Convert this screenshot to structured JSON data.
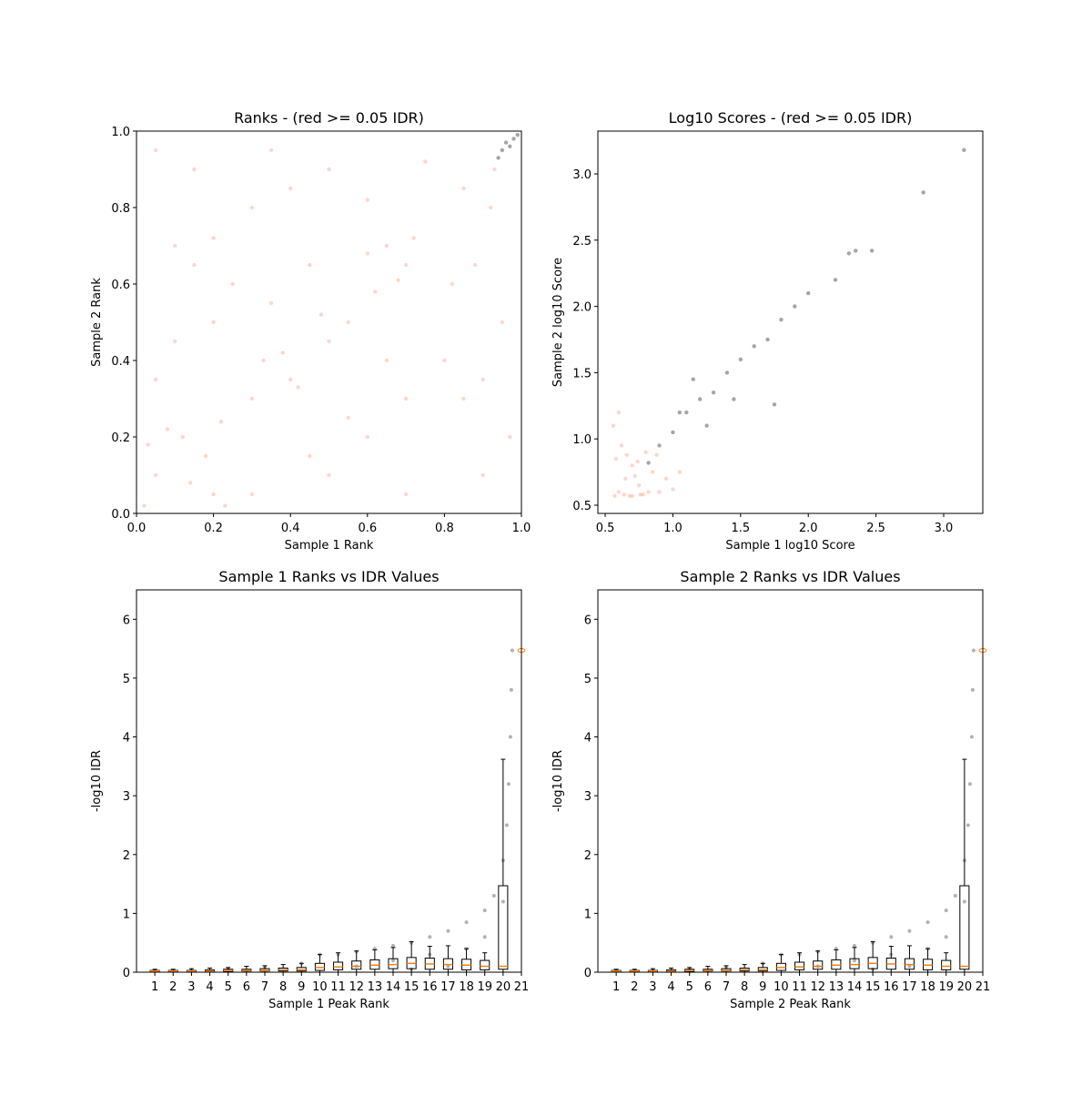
{
  "chart_data": [
    {
      "type": "scatter",
      "title": "Ranks - (red >= 0.05 IDR)",
      "x_label": "Sample 1 Rank",
      "y_label": "Sample 2 Rank",
      "xlim": [
        0,
        1
      ],
      "ylim": [
        0,
        1
      ],
      "xticks": [
        {
          "value": 0,
          "label": "0.0"
        },
        0.2,
        0.4,
        0.6,
        0.8,
        {
          "value": 1,
          "label": "1.0"
        }
      ],
      "yticks": [
        {
          "value": 0,
          "label": "0.0"
        },
        0.2,
        0.4,
        0.6,
        0.8,
        {
          "value": 1,
          "label": "1.0"
        }
      ],
      "series": [
        {
          "color": "#fa8c6c",
          "x": [
            0.05,
            0.12,
            0.2,
            0.08,
            0.18,
            0.3,
            0.4,
            0.5,
            0.35,
            0.45,
            0.55,
            0.3,
            0.4,
            0.5,
            0.6,
            0.65,
            0.7,
            0.72,
            0.6,
            0.1,
            0.15,
            0.2,
            0.05,
            0.15,
            0.8,
            0.85,
            0.9,
            0.82,
            0.88,
            0.95,
            0.97,
            0.5,
            0.6,
            0.7,
            0.9,
            0.1,
            0.2,
            0.05,
            0.65,
            0.7,
            0.3,
            0.35,
            0.75,
            0.85,
            0.25,
            0.55,
            0.45,
            0.92,
            0.02,
            0.23,
            0.33,
            0.42,
            0.62,
            0.68,
            0.14,
            0.03,
            0.22,
            0.38,
            0.48,
            0.93
          ],
          "y": [
            0.1,
            0.2,
            0.05,
            0.22,
            0.15,
            0.3,
            0.35,
            0.45,
            0.55,
            0.65,
            0.5,
            0.8,
            0.85,
            0.9,
            0.82,
            0.7,
            0.65,
            0.72,
            0.68,
            0.7,
            0.65,
            0.72,
            0.95,
            0.9,
            0.4,
            0.3,
            0.35,
            0.6,
            0.65,
            0.5,
            0.2,
            0.1,
            0.2,
            0.05,
            0.1,
            0.45,
            0.5,
            0.35,
            0.4,
            0.3,
            0.05,
            0.95,
            0.92,
            0.85,
            0.6,
            0.25,
            0.15,
            0.8,
            0.02,
            0.02,
            0.4,
            0.33,
            0.58,
            0.61,
            0.08,
            0.18,
            0.24,
            0.42,
            0.52,
            0.9
          ]
        },
        {
          "color": "#000000",
          "x": [
            0.94,
            0.95,
            0.96,
            0.97,
            0.98,
            0.99
          ],
          "y": [
            0.93,
            0.95,
            0.97,
            0.96,
            0.98,
            0.99
          ]
        }
      ]
    },
    {
      "type": "scatter",
      "title": "Log10 Scores - (red >= 0.05 IDR)",
      "x_label": "Sample 1 log10 Score",
      "y_label": "Sample 2 log10 Score",
      "xlim": [
        0.446,
        3.289
      ],
      "ylim": [
        0.438,
        3.323
      ],
      "xticks": [
        0.5,
        {
          "value": 1,
          "label": "1.0"
        },
        1.5,
        {
          "value": 2,
          "label": "2.0"
        },
        2.5,
        {
          "value": 3,
          "label": "3.0"
        }
      ],
      "yticks": [
        0.5,
        {
          "value": 1,
          "label": "1.0"
        },
        1.5,
        {
          "value": 2,
          "label": "2.0"
        },
        2.5,
        {
          "value": 3,
          "label": "3.0"
        }
      ],
      "series": [
        {
          "color": "#fa8c6c",
          "x": [
            0.6,
            0.65,
            0.7,
            0.75,
            0.8,
            0.58,
            0.9,
            0.95,
            0.85,
            0.62,
            0.68,
            0.78,
            1.0,
            1.05,
            0.56,
            0.6,
            0.72,
            0.88,
            0.57,
            0.64,
            0.7,
            0.76,
            0.82,
            0.66,
            0.74
          ],
          "y": [
            0.6,
            0.7,
            0.8,
            0.65,
            0.9,
            0.85,
            0.6,
            0.7,
            0.75,
            0.95,
            0.57,
            0.58,
            0.62,
            0.75,
            1.1,
            1.2,
            0.72,
            0.88,
            0.57,
            0.58,
            0.57,
            0.58,
            0.6,
            0.88,
            0.83
          ]
        },
        {
          "color": "#000000",
          "x": [
            0.82,
            0.9,
            1.0,
            1.1,
            1.2,
            1.3,
            1.4,
            1.5,
            1.6,
            1.7,
            1.8,
            1.9,
            2.0,
            2.2,
            2.3,
            2.35,
            2.47,
            2.85,
            3.15,
            1.25,
            1.45,
            1.75,
            1.05,
            1.15
          ],
          "y": [
            0.82,
            0.95,
            1.05,
            1.2,
            1.3,
            1.35,
            1.5,
            1.6,
            1.7,
            1.75,
            1.9,
            2.0,
            2.1,
            2.2,
            2.4,
            2.42,
            2.42,
            2.86,
            3.18,
            1.1,
            1.3,
            1.26,
            1.2,
            1.45
          ]
        }
      ]
    },
    {
      "type": "box",
      "title": "Sample 1 Ranks vs IDR Values",
      "x_label": "Sample 1 Peak Rank",
      "y_label": "-log10 IDR",
      "xlim": [
        0,
        21
      ],
      "ylim": [
        0,
        6.5
      ],
      "xticks": [
        1,
        2,
        3,
        4,
        5,
        6,
        7,
        8,
        9,
        10,
        11,
        12,
        13,
        14,
        15,
        16,
        17,
        18,
        19,
        20,
        21
      ],
      "yticks": [
        0,
        1,
        2,
        3,
        4,
        5,
        6
      ],
      "points": {
        "color": "#000000",
        "x": [
          1,
          3,
          5,
          7,
          9,
          10,
          11,
          12,
          13,
          14,
          15,
          16,
          17,
          18,
          19,
          19.5,
          20,
          20.2,
          20.3,
          20.4,
          20.45,
          20.5,
          12,
          14,
          16,
          18,
          19,
          20,
          17,
          15
        ],
        "y": [
          0.02,
          0.03,
          0.05,
          0.08,
          0.15,
          0.3,
          0.3,
          0.35,
          0.4,
          0.45,
          0.5,
          0.6,
          0.7,
          0.85,
          1.05,
          1.3,
          1.9,
          2.5,
          3.2,
          4.0,
          4.8,
          5.47,
          0.1,
          0.2,
          0.3,
          0.4,
          0.6,
          1.2,
          0.1,
          0.05
        ]
      },
      "boxes": {
        "positions": [
          1,
          2,
          3,
          4,
          5,
          6,
          7,
          8,
          9,
          10,
          11,
          12,
          13,
          14,
          15,
          16,
          17,
          18,
          19,
          20
        ],
        "low": [
          0,
          0,
          0,
          0,
          0,
          0,
          0,
          0,
          0,
          0,
          0,
          0,
          0,
          0,
          0,
          0,
          0,
          0,
          0,
          0
        ],
        "q1": [
          0.01,
          0.01,
          0.01,
          0.01,
          0.01,
          0.02,
          0.02,
          0.02,
          0.02,
          0.03,
          0.04,
          0.05,
          0.05,
          0.06,
          0.06,
          0.05,
          0.05,
          0.04,
          0.04,
          0.05
        ],
        "median": [
          0.02,
          0.02,
          0.02,
          0.02,
          0.03,
          0.03,
          0.03,
          0.04,
          0.04,
          0.08,
          0.09,
          0.1,
          0.12,
          0.13,
          0.15,
          0.14,
          0.13,
          0.12,
          0.1,
          0.1
        ],
        "q3": [
          0.03,
          0.03,
          0.03,
          0.04,
          0.05,
          0.05,
          0.06,
          0.07,
          0.08,
          0.15,
          0.17,
          0.19,
          0.21,
          0.23,
          0.25,
          0.24,
          0.23,
          0.22,
          0.2,
          1.47
        ],
        "high": [
          0.05,
          0.05,
          0.06,
          0.07,
          0.08,
          0.1,
          0.11,
          0.13,
          0.15,
          0.3,
          0.33,
          0.36,
          0.38,
          0.42,
          0.52,
          0.44,
          0.45,
          0.4,
          0.33,
          3.62
        ],
        "median_color": "#ff7f0e"
      },
      "fliers": {
        "x": [
          21
        ],
        "y": [
          5.47
        ],
        "color": "#ff7f0e"
      }
    },
    {
      "type": "box",
      "title": "Sample 2 Ranks vs IDR Values",
      "x_label": "Sample 2 Peak Rank",
      "y_label": "-log10 IDR",
      "xlim": [
        0,
        21
      ],
      "ylim": [
        0,
        6.5
      ],
      "xticks": [
        1,
        2,
        3,
        4,
        5,
        6,
        7,
        8,
        9,
        10,
        11,
        12,
        13,
        14,
        15,
        16,
        17,
        18,
        19,
        20,
        21
      ],
      "yticks": [
        0,
        1,
        2,
        3,
        4,
        5,
        6
      ],
      "points": {
        "color": "#000000",
        "x": [
          1,
          3,
          5,
          7,
          9,
          10,
          11,
          12,
          13,
          14,
          15,
          16,
          17,
          18,
          19,
          19.5,
          20,
          20.2,
          20.3,
          20.4,
          20.45,
          20.5,
          12,
          14,
          16,
          18,
          19,
          20,
          17,
          15
        ],
        "y": [
          0.02,
          0.03,
          0.05,
          0.08,
          0.15,
          0.3,
          0.3,
          0.35,
          0.4,
          0.45,
          0.5,
          0.6,
          0.7,
          0.85,
          1.05,
          1.3,
          1.9,
          2.5,
          3.2,
          4.0,
          4.8,
          5.47,
          0.1,
          0.2,
          0.3,
          0.4,
          0.6,
          1.2,
          0.1,
          0.05
        ]
      },
      "boxes": {
        "positions": [
          1,
          2,
          3,
          4,
          5,
          6,
          7,
          8,
          9,
          10,
          11,
          12,
          13,
          14,
          15,
          16,
          17,
          18,
          19,
          20
        ],
        "low": [
          0,
          0,
          0,
          0,
          0,
          0,
          0,
          0,
          0,
          0,
          0,
          0,
          0,
          0,
          0,
          0,
          0,
          0,
          0,
          0
        ],
        "q1": [
          0.01,
          0.01,
          0.01,
          0.01,
          0.01,
          0.02,
          0.02,
          0.02,
          0.02,
          0.03,
          0.04,
          0.05,
          0.05,
          0.06,
          0.06,
          0.05,
          0.05,
          0.04,
          0.04,
          0.05
        ],
        "median": [
          0.02,
          0.02,
          0.02,
          0.02,
          0.03,
          0.03,
          0.03,
          0.04,
          0.04,
          0.08,
          0.09,
          0.1,
          0.12,
          0.13,
          0.15,
          0.14,
          0.13,
          0.12,
          0.1,
          0.1
        ],
        "q3": [
          0.03,
          0.03,
          0.03,
          0.04,
          0.05,
          0.05,
          0.06,
          0.07,
          0.08,
          0.15,
          0.17,
          0.19,
          0.21,
          0.23,
          0.25,
          0.24,
          0.23,
          0.22,
          0.2,
          1.47
        ],
        "high": [
          0.05,
          0.05,
          0.06,
          0.07,
          0.08,
          0.1,
          0.11,
          0.13,
          0.15,
          0.3,
          0.33,
          0.36,
          0.38,
          0.42,
          0.52,
          0.44,
          0.45,
          0.4,
          0.33,
          3.62
        ],
        "median_color": "#ff7f0e"
      },
      "fliers": {
        "x": [
          21
        ],
        "y": [
          5.47
        ],
        "color": "#ff7f0e"
      }
    }
  ]
}
